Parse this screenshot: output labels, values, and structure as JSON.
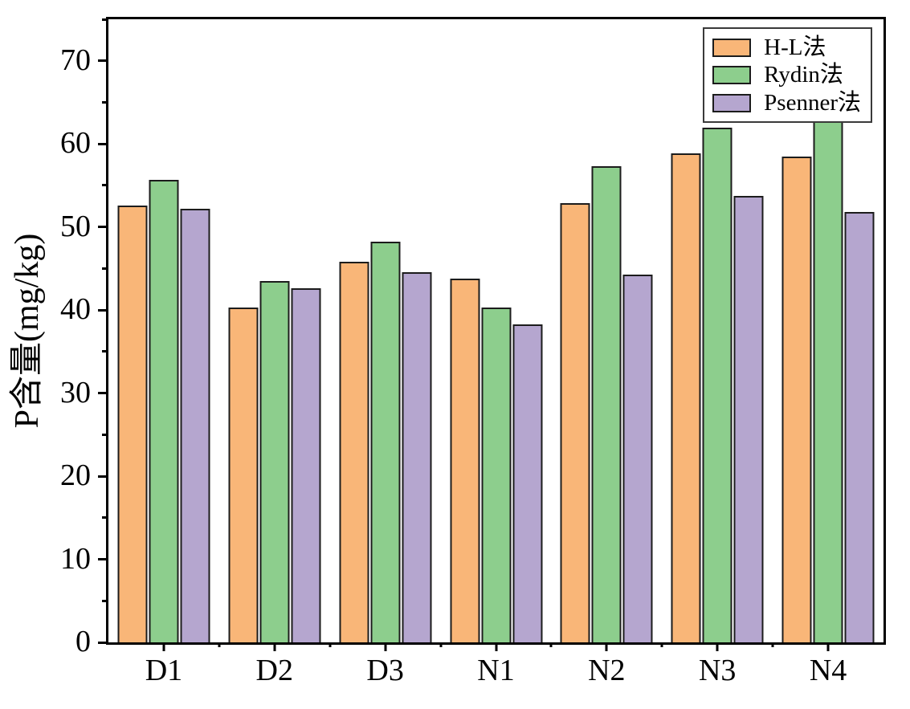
{
  "figure": {
    "background": "#ffffff",
    "frame_color": "#000000"
  },
  "chart_data": {
    "type": "bar",
    "title": "",
    "xlabel": "",
    "ylabel": "P含量(mg/kg)",
    "ylim": [
      0,
      75
    ],
    "ytick_major_step": 10,
    "ytick_minor_step": 5,
    "ytick_labels": [
      "0",
      "10",
      "20",
      "30",
      "40",
      "50",
      "60",
      "70"
    ],
    "grid": false,
    "legend_position": "top-right",
    "bar_edge_color": "#1c1c1c",
    "categories": [
      "D1",
      "D2",
      "D3",
      "N1",
      "N2",
      "N3",
      "N4"
    ],
    "series": [
      {
        "name": "H-L法",
        "color": "#F9B678",
        "values": [
          52.6,
          40.3,
          45.8,
          43.8,
          52.9,
          58.9,
          58.5
        ]
      },
      {
        "name": "Rydin法",
        "color": "#8DCE8D",
        "values": [
          55.7,
          43.5,
          48.2,
          40.3,
          57.3,
          62.0,
          64.4
        ]
      },
      {
        "name": "Psenner法",
        "color": "#B5A6CF",
        "values": [
          52.2,
          42.6,
          44.6,
          38.3,
          44.3,
          53.7,
          51.8
        ]
      }
    ]
  }
}
